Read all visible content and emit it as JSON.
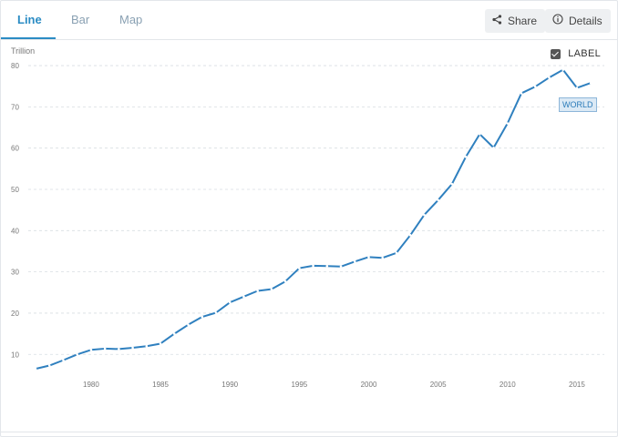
{
  "tabs": [
    {
      "label": "Line",
      "active": true
    },
    {
      "label": "Bar",
      "active": false
    },
    {
      "label": "Map",
      "active": false
    }
  ],
  "toolbar": {
    "share_label": "Share",
    "share_icon": "share-icon",
    "details_label": "Details",
    "details_icon": "info-icon"
  },
  "label_toggle": {
    "text": "LABEL",
    "checked": true
  },
  "colors": {
    "accent": "#2b8cc4",
    "series": "#2f80bf"
  },
  "chart_data": {
    "type": "line",
    "unit_label": "Trillion",
    "x": [
      1976,
      1977,
      1978,
      1979,
      1980,
      1981,
      1982,
      1983,
      1984,
      1985,
      1986,
      1987,
      1988,
      1989,
      1990,
      1991,
      1992,
      1993,
      1994,
      1995,
      1996,
      1997,
      1998,
      1999,
      2000,
      2001,
      2002,
      2003,
      2004,
      2005,
      2006,
      2007,
      2008,
      2009,
      2010,
      2011,
      2012,
      2013,
      2014,
      2015,
      2016
    ],
    "series": [
      {
        "name": "WORLD",
        "values": [
          6.5,
          7.3,
          8.6,
          10.0,
          11.1,
          11.4,
          11.3,
          11.6,
          12.0,
          12.6,
          15.0,
          17.2,
          19.1,
          20.1,
          22.6,
          24.0,
          25.4,
          25.8,
          27.7,
          30.9,
          31.5,
          31.4,
          31.3,
          32.5,
          33.6,
          33.4,
          34.6,
          38.9,
          43.8,
          47.4,
          51.3,
          57.9,
          63.4,
          60.1,
          66.0,
          73.3,
          74.9,
          77.1,
          79.0,
          74.6,
          75.8
        ]
      }
    ],
    "xticks": [
      1980,
      1985,
      1990,
      1995,
      2000,
      2005,
      2010,
      2015
    ],
    "yticks": [
      10,
      20,
      30,
      40,
      50,
      60,
      70,
      80
    ],
    "xlim": [
      1976,
      2017.5
    ],
    "ylim": [
      3,
      82
    ],
    "grid": true,
    "end_label": "WORLD"
  }
}
